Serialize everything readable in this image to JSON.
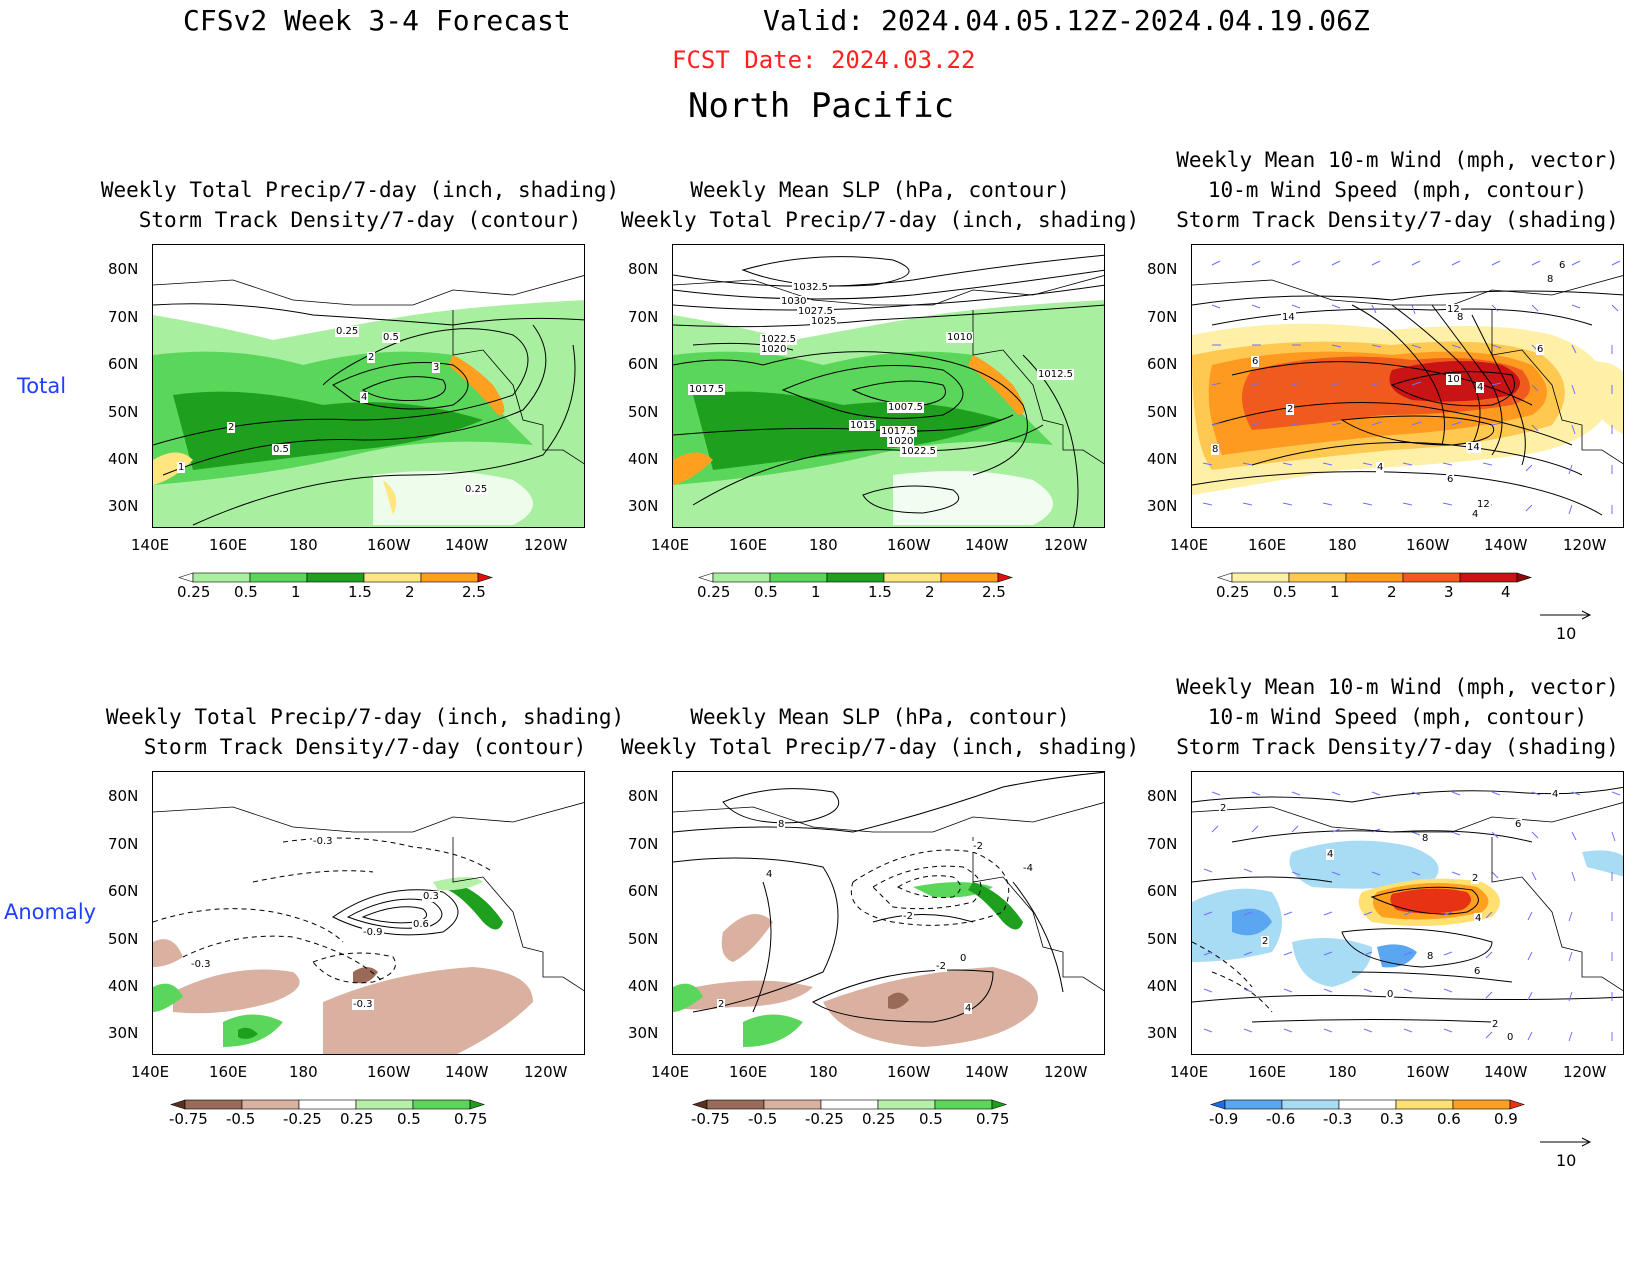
{
  "header": {
    "title_left": "CFSv2 Week 3-4 Forecast",
    "title_valid": "Valid: 2024.04.05.12Z-2024.04.19.06Z",
    "fcst_date": "FCST Date: 2024.03.22",
    "region": "North Pacific",
    "fcst_color": "#ff2020"
  },
  "rows": [
    {
      "label": "Total"
    },
    {
      "label": "Anomaly"
    }
  ],
  "axes": {
    "lat_labels": [
      "80N",
      "70N",
      "60N",
      "50N",
      "40N",
      "30N"
    ],
    "lon_labels": [
      "140E",
      "160E",
      "180",
      "160W",
      "140W",
      "120W"
    ]
  },
  "panels": {
    "p1": {
      "title1": "Weekly Total Precip/7-day (inch, shading)",
      "title2": "Storm Track Density/7-day (contour)"
    },
    "p2": {
      "title1": "Weekly Mean SLP (hPa, contour)",
      "title2": "Weekly Total Precip/7-day (inch, shading)"
    },
    "p3": {
      "title0": "Weekly Mean 10-m Wind (mph, vector)",
      "title1": "10-m Wind Speed (mph, contour)",
      "title2": "Storm Track Density/7-day (shading)"
    },
    "p4": {
      "title1": "Weekly Total Precip/7-day (inch, shading)",
      "title2": "Storm Track Density/7-day (contour)"
    },
    "p5": {
      "title1": "Weekly Mean SLP (hPa, contour)",
      "title2": "Weekly Total Precip/7-day (inch, shading)"
    },
    "p6": {
      "title0": "Weekly Mean 10-m Wind (mph, vector)",
      "title1": "10-m Wind Speed (mph, contour)",
      "title2": "Storm Track Density/7-day (shading)"
    }
  },
  "contour_labels": {
    "p1": [
      "0.25",
      "0.5",
      "2",
      "3",
      "4",
      "2",
      "0.5",
      "1",
      "0.25"
    ],
    "p2": [
      "1032.5",
      "1030",
      "1027.5",
      "1025",
      "1022.5",
      "1020",
      "1010",
      "1017.5",
      "1007.5",
      "1015",
      "1017.5",
      "1020",
      "1022.5",
      "1012.5"
    ],
    "p3": [
      "6",
      "8",
      "14",
      "12",
      "8",
      "6",
      "10",
      "4",
      "6",
      "2",
      "8",
      "4",
      "14",
      "6",
      "12",
      "4"
    ],
    "p4": [
      "-0.3",
      "0.3",
      "-0.9",
      "0.6",
      "-0.3",
      "-0.3"
    ],
    "p5": [
      "8",
      "-2",
      "-4",
      "4",
      "-2",
      "0",
      "-2",
      "2",
      "4"
    ],
    "p6": [
      "2",
      "4",
      "6",
      "8",
      "4",
      "2",
      "4",
      "2",
      "8",
      "6",
      "0",
      "2",
      "0"
    ]
  },
  "colorbars": {
    "precip_total": {
      "labels": [
        "0.25",
        "0.5",
        "1",
        "1.5",
        "2",
        "2.5"
      ],
      "colors": [
        "#ffffff",
        "#a8f0a0",
        "#5ad65a",
        "#1ea01e",
        "#ffe680",
        "#ffa020",
        "#e01010"
      ]
    },
    "track_total": {
      "labels": [
        "0.25",
        "0.5",
        "1",
        "2",
        "3",
        "4"
      ],
      "colors": [
        "#ffffff",
        "#fff0a8",
        "#ffc850",
        "#ff9a20",
        "#f05a1e",
        "#c81414",
        "#8c0a0a"
      ]
    },
    "precip_anom": {
      "labels": [
        "-0.75",
        "-0.5",
        "-0.25",
        "0.25",
        "0.5",
        "0.75"
      ],
      "colors": [
        "#5a3020",
        "#9a6a58",
        "#dab0a0",
        "#ffffff",
        "#b4f0a8",
        "#5ad65a",
        "#1ea01e"
      ]
    },
    "track_anom": {
      "labels": [
        "-0.9",
        "-0.6",
        "-0.3",
        "0.3",
        "0.6",
        "0.9"
      ],
      "colors": [
        "#1a6ee6",
        "#5aa6f0",
        "#a8dcf5",
        "#ffffff",
        "#ffe070",
        "#ffa020",
        "#e83214"
      ]
    }
  },
  "vector_ref": {
    "value": "10"
  }
}
